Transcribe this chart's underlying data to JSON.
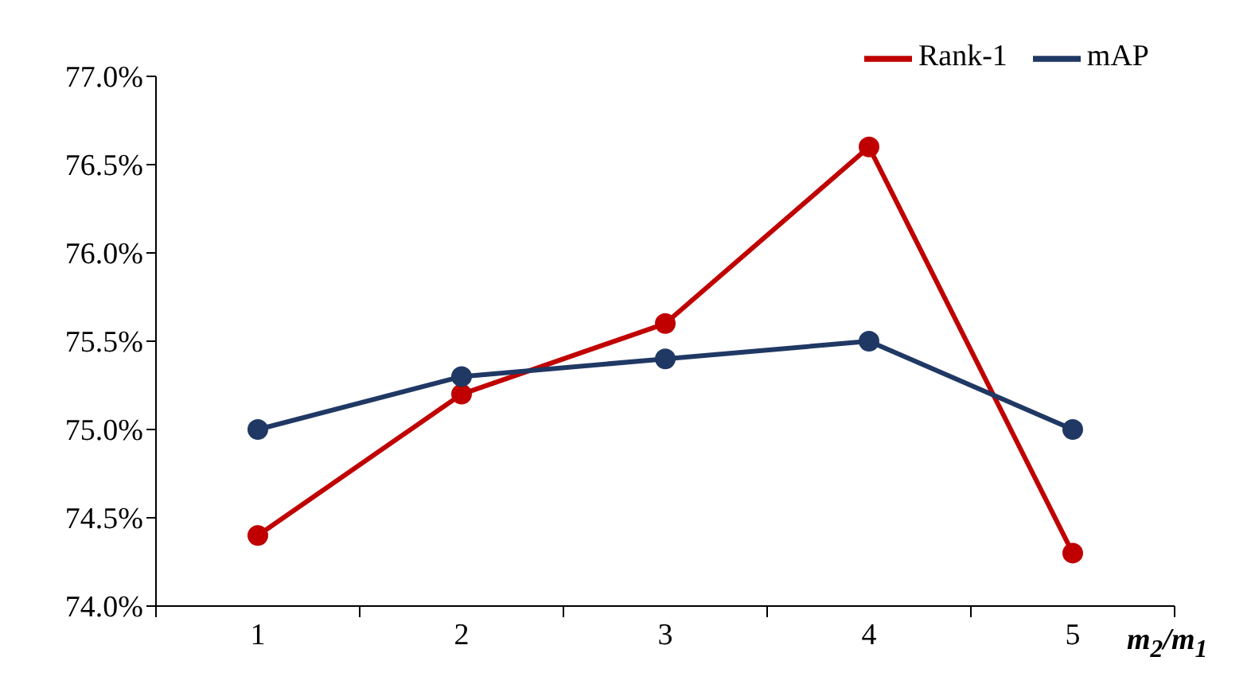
{
  "chart_data": {
    "type": "line",
    "xlabel": "m$_{2}$/m$_{1}$",
    "categories": [
      "1",
      "2",
      "3",
      "4",
      "5"
    ],
    "series": [
      {
        "name": "Rank-1",
        "color": "#c00000",
        "values": [
          74.4,
          75.2,
          75.6,
          76.6,
          74.3
        ]
      },
      {
        "name": "mAP",
        "color": "#203864",
        "values": [
          75.0,
          75.3,
          75.4,
          75.5,
          75.0
        ]
      }
    ],
    "ylim": [
      74,
      77
    ],
    "yticks": [
      {
        "value": 74,
        "label": "74.0%"
      },
      {
        "value": 74.5,
        "label": "74.5%"
      },
      {
        "value": 75,
        "label": "75.0%"
      },
      {
        "value": 75.5,
        "label": "75.5%"
      },
      {
        "value": 76,
        "label": "76.0%"
      },
      {
        "value": 76.5,
        "label": "76.5%"
      },
      {
        "value": 77,
        "label": "77.0%"
      }
    ],
    "grid": false,
    "legend": "top right",
    "marker": "circle",
    "line_style": "solid"
  }
}
